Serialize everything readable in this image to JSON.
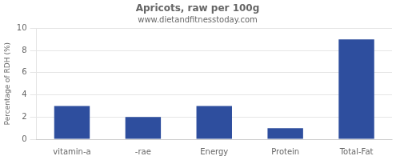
{
  "chart_data": {
    "type": "bar",
    "title": "Apricots, raw per 100g",
    "subtitle": "www.dietandfitnesstoday.com",
    "categories": [
      "vitamin-a",
      "-rae",
      "Energy",
      "Protein",
      "Total-Fat"
    ],
    "values": [
      3.0,
      2.0,
      3.0,
      1.0,
      9.0
    ],
    "color": "#2e4e9e",
    "ylabel": "Percentage of RDH (%)",
    "ylim": [
      0,
      10
    ],
    "yticks": [
      0,
      2,
      4,
      6,
      8,
      10
    ],
    "grid": true
  }
}
